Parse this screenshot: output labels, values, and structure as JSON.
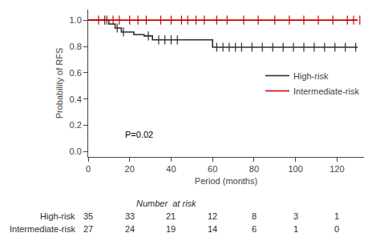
{
  "chart_data": {
    "type": "line",
    "line_style": "step",
    "x_label": "Period (months)",
    "y_label": "Probability of RFS",
    "xlim": [
      0,
      133
    ],
    "ylim": [
      -0.04,
      1.08
    ],
    "xticks": [
      0,
      20,
      40,
      60,
      80,
      100,
      120
    ],
    "yticks": [
      {
        "value": 0.0,
        "label": "0.0"
      },
      0.2,
      0.4,
      0.6,
      0.8,
      {
        "value": 1.0,
        "label": "1.0"
      }
    ],
    "grid": false,
    "legend": "right",
    "series": [
      {
        "name": "High-risk",
        "color": "#2d2d2d",
        "x": [
          0,
          7,
          10,
          13,
          16,
          19,
          22,
          27,
          31,
          33,
          36,
          39,
          42,
          57,
          60,
          130
        ],
        "values": [
          1.0,
          1.0,
          0.97,
          0.94,
          0.91,
          0.91,
          0.89,
          0.88,
          0.85,
          0.85,
          0.85,
          0.85,
          0.85,
          0.85,
          0.794,
          0.794
        ],
        "censor_x": [
          8,
          14,
          17,
          29,
          34,
          37,
          40,
          43,
          62,
          65,
          68,
          71,
          74,
          79,
          84,
          89,
          94,
          99,
          104,
          109,
          114,
          119,
          124,
          129
        ],
        "censor_y": [
          1.0,
          0.94,
          0.91,
          0.88,
          0.85,
          0.85,
          0.85,
          0.85,
          0.794,
          0.794,
          0.794,
          0.794,
          0.794,
          0.794,
          0.794,
          0.794,
          0.794,
          0.794,
          0.794,
          0.794,
          0.794,
          0.794,
          0.794,
          0.794
        ]
      },
      {
        "name": "Intermediate-risk",
        "color": "#cc0000",
        "x": [
          0,
          130
        ],
        "values": [
          1.0,
          1.0
        ],
        "censor_x": [
          5,
          9,
          12,
          15,
          20,
          24,
          28,
          35,
          40,
          45,
          48,
          52,
          56,
          62,
          67,
          75,
          82,
          90,
          97,
          104,
          111,
          118,
          125,
          128,
          131
        ],
        "censor_y": [
          1.0,
          1.0,
          1.0,
          1.0,
          1.0,
          1.0,
          1.0,
          1.0,
          1.0,
          1.0,
          1.0,
          1.0,
          1.0,
          1.0,
          1.0,
          1.0,
          1.0,
          1.0,
          1.0,
          1.0,
          1.0,
          1.0,
          1.0,
          1.0,
          1.0
        ]
      }
    ],
    "annotations": [
      {
        "text": "P=0.02",
        "x": 17,
        "y": 0.08
      }
    ],
    "risk_table": {
      "title": "Number  at risk",
      "color": "#2d2d2d",
      "x": [
        0,
        20,
        40,
        60,
        80,
        100,
        120
      ],
      "rows": [
        {
          "label": "High-risk",
          "values": [
            35,
            33,
            21,
            12,
            8,
            3,
            1
          ]
        },
        {
          "label": "Intermediate-risk",
          "values": [
            27,
            24,
            19,
            14,
            6,
            1,
            0
          ]
        }
      ]
    }
  }
}
